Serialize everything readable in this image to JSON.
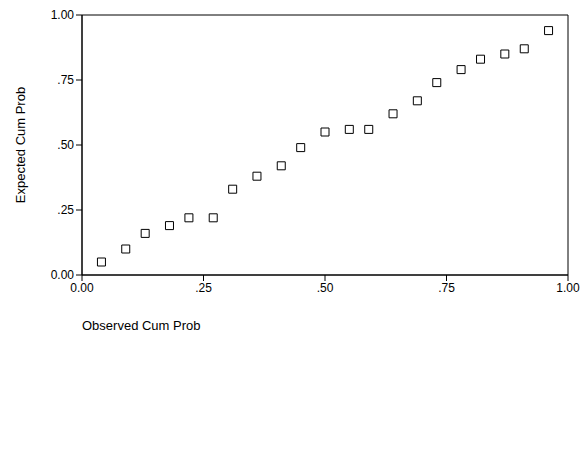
{
  "chart_data": {
    "type": "scatter",
    "x_label": "Observed Cum Prob",
    "y_label": "Expected Cum Prob",
    "x": [
      0.04,
      0.09,
      0.13,
      0.18,
      0.22,
      0.27,
      0.31,
      0.36,
      0.41,
      0.45,
      0.5,
      0.55,
      0.59,
      0.64,
      0.69,
      0.73,
      0.78,
      0.82,
      0.87,
      0.91,
      0.96
    ],
    "values": [
      0.05,
      0.1,
      0.16,
      0.19,
      0.22,
      0.22,
      0.33,
      0.38,
      0.42,
      0.49,
      0.55,
      0.56,
      0.56,
      0.62,
      0.67,
      0.74,
      0.79,
      0.83,
      0.85,
      0.87,
      0.94
    ],
    "color": "#000000",
    "marker": "square",
    "xlim": [
      0,
      1
    ],
    "ylim": [
      0,
      1
    ],
    "xticks": [
      {
        "value": 0,
        "label": "0.00"
      },
      {
        "value": 0.25,
        "label": ".25"
      },
      {
        "value": 0.5,
        "label": ".50"
      },
      {
        "value": 0.75,
        "label": ".75"
      },
      {
        "value": 1,
        "label": "1.00"
      }
    ],
    "yticks": [
      {
        "value": 0,
        "label": "0.00"
      },
      {
        "value": 0.25,
        "label": ".25"
      },
      {
        "value": 0.5,
        "label": ".50"
      },
      {
        "value": 0.75,
        "label": ".75"
      },
      {
        "value": 1,
        "label": "1.00"
      }
    ],
    "grid": false
  }
}
